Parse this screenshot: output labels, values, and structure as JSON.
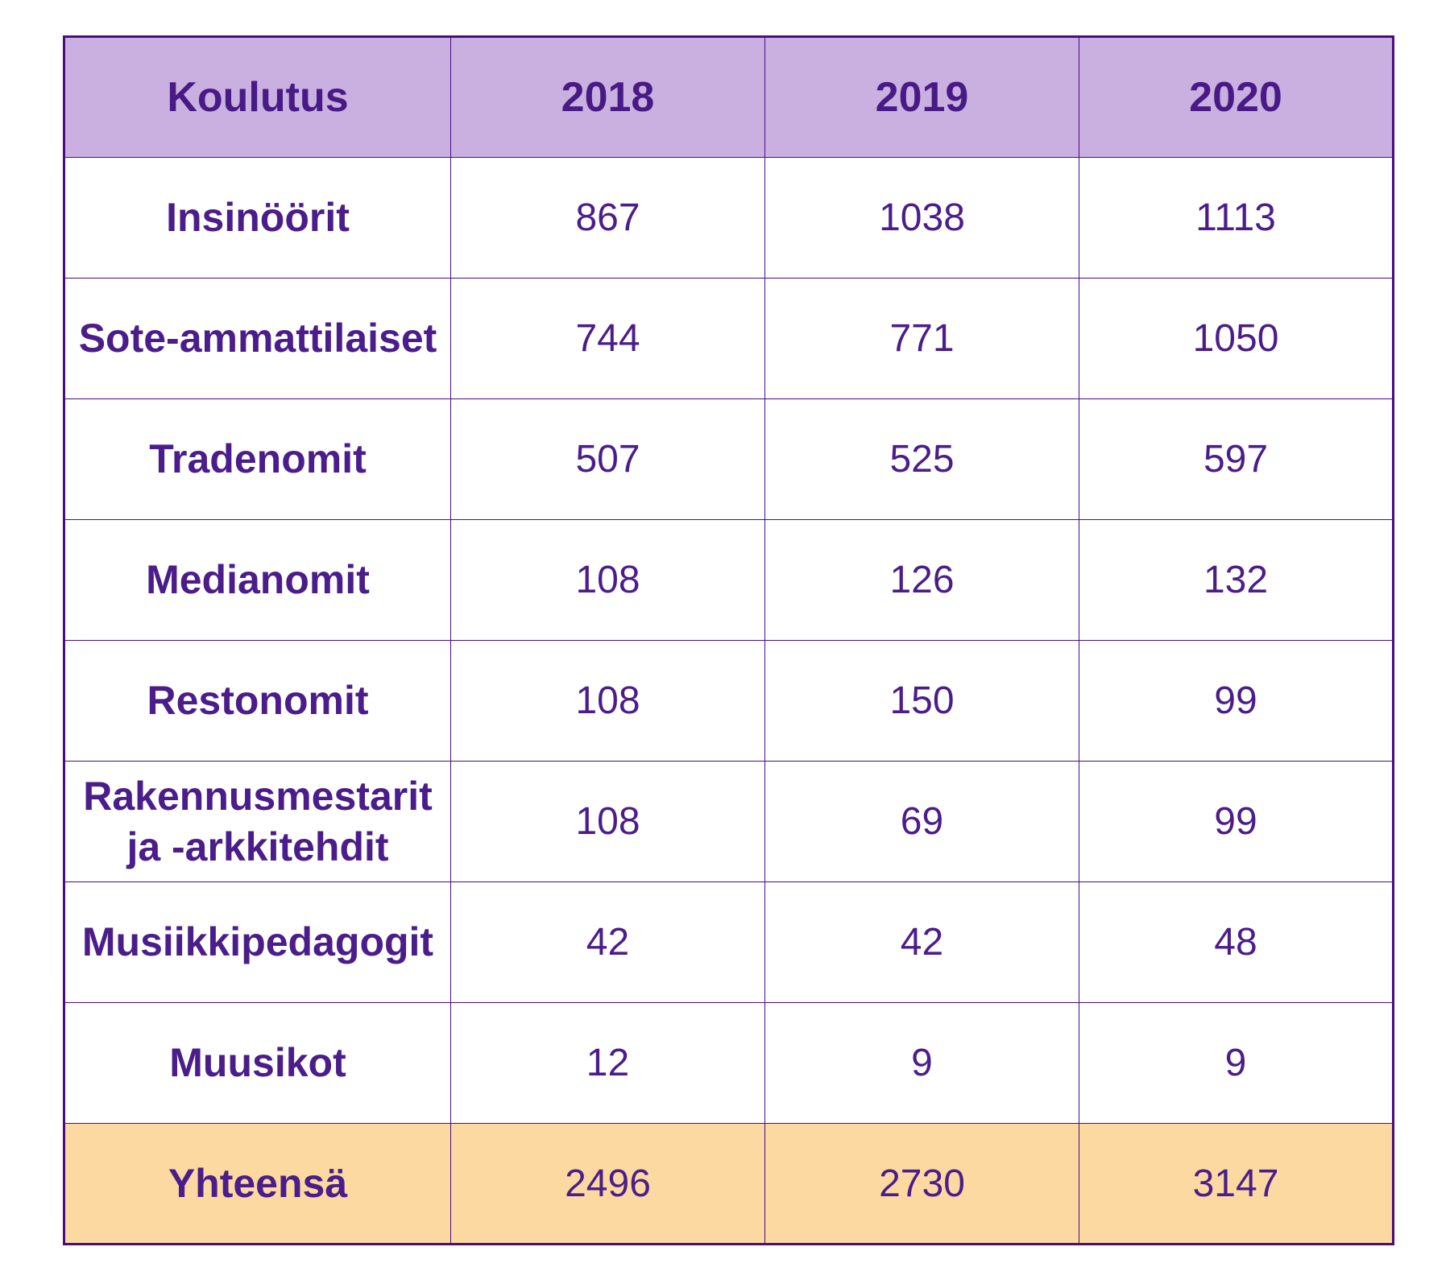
{
  "colors": {
    "header_bg": "#cab0e0",
    "total_row_bg": "#fbd9a1",
    "text_purple": "#4b1d8a",
    "border_purple": "#4a0d80",
    "body_bg": "#ffffff"
  },
  "table": {
    "columns": [
      "Koulutus",
      "2018",
      "2019",
      "2020"
    ],
    "rows": [
      {
        "label": "Insinöörit",
        "values": [
          867,
          1038,
          1113
        ]
      },
      {
        "label": "Sote-ammattilaiset",
        "values": [
          744,
          771,
          1050
        ]
      },
      {
        "label": "Tradenomit",
        "values": [
          507,
          525,
          597
        ]
      },
      {
        "label": "Medianomit",
        "values": [
          108,
          126,
          132
        ]
      },
      {
        "label": "Restonomit",
        "values": [
          108,
          150,
          99
        ]
      },
      {
        "label": "Rakennusmestarit ja -arkkitehdit",
        "values": [
          108,
          69,
          99
        ]
      },
      {
        "label": "Musiikkipedagogit",
        "values": [
          42,
          42,
          48
        ]
      },
      {
        "label": "Muusikot",
        "values": [
          12,
          9,
          9
        ]
      }
    ],
    "total": {
      "label": "Yhteensä",
      "values": [
        2496,
        2730,
        3147
      ]
    }
  },
  "chart_data": {
    "type": "table",
    "title": "",
    "columns": [
      "Koulutus",
      "2018",
      "2019",
      "2020"
    ],
    "categories": [
      "Insinöörit",
      "Sote-ammattilaiset",
      "Tradenomit",
      "Medianomit",
      "Restonomit",
      "Rakennusmestarit ja -arkkitehdit",
      "Musiikkipedagogit",
      "Muusikot",
      "Yhteensä"
    ],
    "series": [
      {
        "name": "2018",
        "values": [
          867,
          744,
          507,
          108,
          108,
          108,
          42,
          12,
          2496
        ]
      },
      {
        "name": "2019",
        "values": [
          1038,
          771,
          525,
          126,
          150,
          69,
          42,
          9,
          2730
        ]
      },
      {
        "name": "2020",
        "values": [
          1113,
          1050,
          597,
          132,
          99,
          99,
          48,
          9,
          3147
        ]
      }
    ]
  }
}
